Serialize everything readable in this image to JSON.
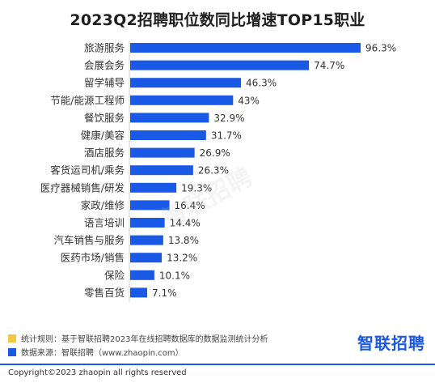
{
  "chart_data": {
    "type": "bar",
    "orientation": "horizontal",
    "title": "2023Q2招聘职位数同比增速TOP15职业",
    "categories": [
      "旅游服务",
      "会展会务",
      "留学辅导",
      "节能/能源工程师",
      "餐饮服务",
      "健康/美容",
      "酒店服务",
      "客货运司机/乘务",
      "医疗器械销售/研发",
      "家政/维修",
      "语言培训",
      "汽车销售与服务",
      "医药市场/销售",
      "保险",
      "零售百货"
    ],
    "values": [
      96.3,
      74.7,
      46.3,
      43,
      32.9,
      31.7,
      26.9,
      26.3,
      19.3,
      16.4,
      14.4,
      13.8,
      13.2,
      10.1,
      7.1
    ],
    "value_labels": [
      "96.3%",
      "74.7%",
      "46.3%",
      "43%",
      "32.9%",
      "31.7%",
      "26.9%",
      "26.3%",
      "19.3%",
      "16.4%",
      "14.4%",
      "13.8%",
      "13.2%",
      "10.1%",
      "7.1%"
    ],
    "unit": "%",
    "xlim": [
      0,
      100
    ],
    "bar_color": "#1a58e6"
  },
  "watermark": "智联招聘",
  "notes": [
    {
      "color": "#f5c842",
      "text": "统计规则：基于智联招聘2023年在线招聘数据库的数据监测统计分析"
    },
    {
      "color": "#1a58e6",
      "text": "数据来源：智联招聘（www.zhaopin.com）"
    }
  ],
  "brand": "智联招聘",
  "copyright": "Copyright©2023 zhaopin all rights reserved"
}
